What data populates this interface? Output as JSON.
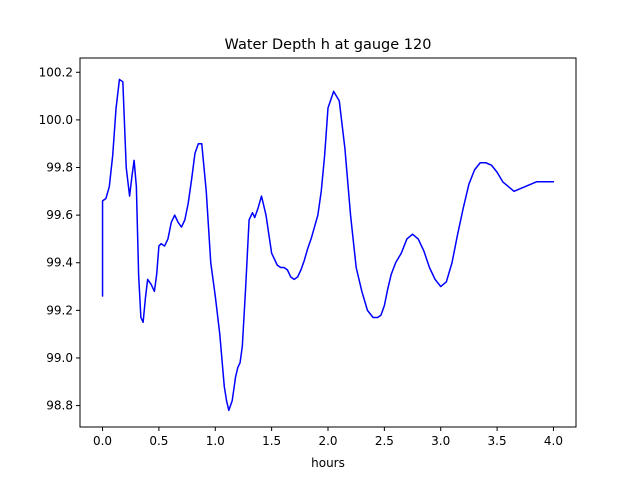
{
  "chart_data": {
    "type": "line",
    "title": "Water Depth h at gauge 120",
    "xlabel": "hours",
    "ylabel": "",
    "xlim": [
      -0.2,
      4.2
    ],
    "ylim": [
      98.71,
      100.26
    ],
    "xticks": [
      0.0,
      0.5,
      1.0,
      1.5,
      2.0,
      2.5,
      3.0,
      3.5,
      4.0
    ],
    "xtick_labels": [
      "0.0",
      "0.5",
      "1.0",
      "1.5",
      "2.0",
      "2.5",
      "3.0",
      "3.5",
      "4.0"
    ],
    "yticks": [
      98.8,
      99.0,
      99.2,
      99.4,
      99.6,
      99.8,
      100.0,
      100.2
    ],
    "ytick_labels": [
      "98.8",
      "99.0",
      "99.2",
      "99.4",
      "99.6",
      "99.8",
      "100.0",
      "100.2"
    ],
    "grid": false,
    "color": "#0000ff",
    "series": [
      {
        "x": [
          0.0,
          0.0,
          0.03,
          0.06,
          0.09,
          0.12,
          0.15,
          0.18,
          0.21,
          0.24,
          0.26,
          0.28,
          0.3,
          0.32,
          0.34,
          0.36,
          0.38,
          0.4,
          0.43,
          0.46,
          0.48,
          0.5,
          0.52,
          0.55,
          0.58,
          0.61,
          0.64,
          0.67,
          0.7,
          0.73,
          0.76,
          0.79,
          0.82,
          0.85,
          0.88,
          0.92,
          0.96,
          1.0,
          1.04,
          1.08,
          1.1,
          1.12,
          1.15,
          1.18,
          1.2,
          1.22,
          1.24,
          1.27,
          1.3,
          1.33,
          1.35,
          1.38,
          1.41,
          1.45,
          1.5,
          1.55,
          1.58,
          1.61,
          1.64,
          1.67,
          1.7,
          1.73,
          1.76,
          1.79,
          1.82,
          1.85,
          1.88,
          1.91,
          1.94,
          1.97,
          2.0,
          2.05,
          2.1,
          2.15,
          2.2,
          2.25,
          2.3,
          2.35,
          2.4,
          2.44,
          2.47,
          2.5,
          2.53,
          2.56,
          2.6,
          2.65,
          2.7,
          2.75,
          2.8,
          2.85,
          2.9,
          2.95,
          3.0,
          3.05,
          3.1,
          3.15,
          3.2,
          3.25,
          3.3,
          3.35,
          3.4,
          3.45,
          3.5,
          3.55,
          3.6,
          3.65,
          3.7,
          3.75,
          3.8,
          3.85,
          3.9,
          3.95,
          4.0
        ],
        "values": [
          99.26,
          99.66,
          99.67,
          99.72,
          99.85,
          100.05,
          100.17,
          100.16,
          99.8,
          99.68,
          99.76,
          99.83,
          99.72,
          99.35,
          99.17,
          99.15,
          99.25,
          99.33,
          99.31,
          99.28,
          99.35,
          99.47,
          99.48,
          99.47,
          99.5,
          99.57,
          99.6,
          99.57,
          99.55,
          99.58,
          99.65,
          99.75,
          99.86,
          99.9,
          99.9,
          99.7,
          99.4,
          99.26,
          99.1,
          98.88,
          98.82,
          98.78,
          98.82,
          98.92,
          98.96,
          98.98,
          99.05,
          99.3,
          99.58,
          99.61,
          99.59,
          99.63,
          99.68,
          99.6,
          99.44,
          99.39,
          99.38,
          99.38,
          99.37,
          99.34,
          99.33,
          99.34,
          99.37,
          99.41,
          99.46,
          99.5,
          99.55,
          99.6,
          99.7,
          99.85,
          100.05,
          100.12,
          100.08,
          99.88,
          99.6,
          99.38,
          99.28,
          99.2,
          99.17,
          99.17,
          99.18,
          99.22,
          99.29,
          99.35,
          99.4,
          99.44,
          99.5,
          99.52,
          99.5,
          99.45,
          99.38,
          99.33,
          99.3,
          99.32,
          99.4,
          99.52,
          99.63,
          99.73,
          99.79,
          99.82,
          99.82,
          99.81,
          99.78,
          99.74,
          99.72,
          99.7,
          99.71,
          99.72,
          99.73,
          99.74,
          99.74,
          99.74,
          99.74
        ]
      }
    ]
  }
}
